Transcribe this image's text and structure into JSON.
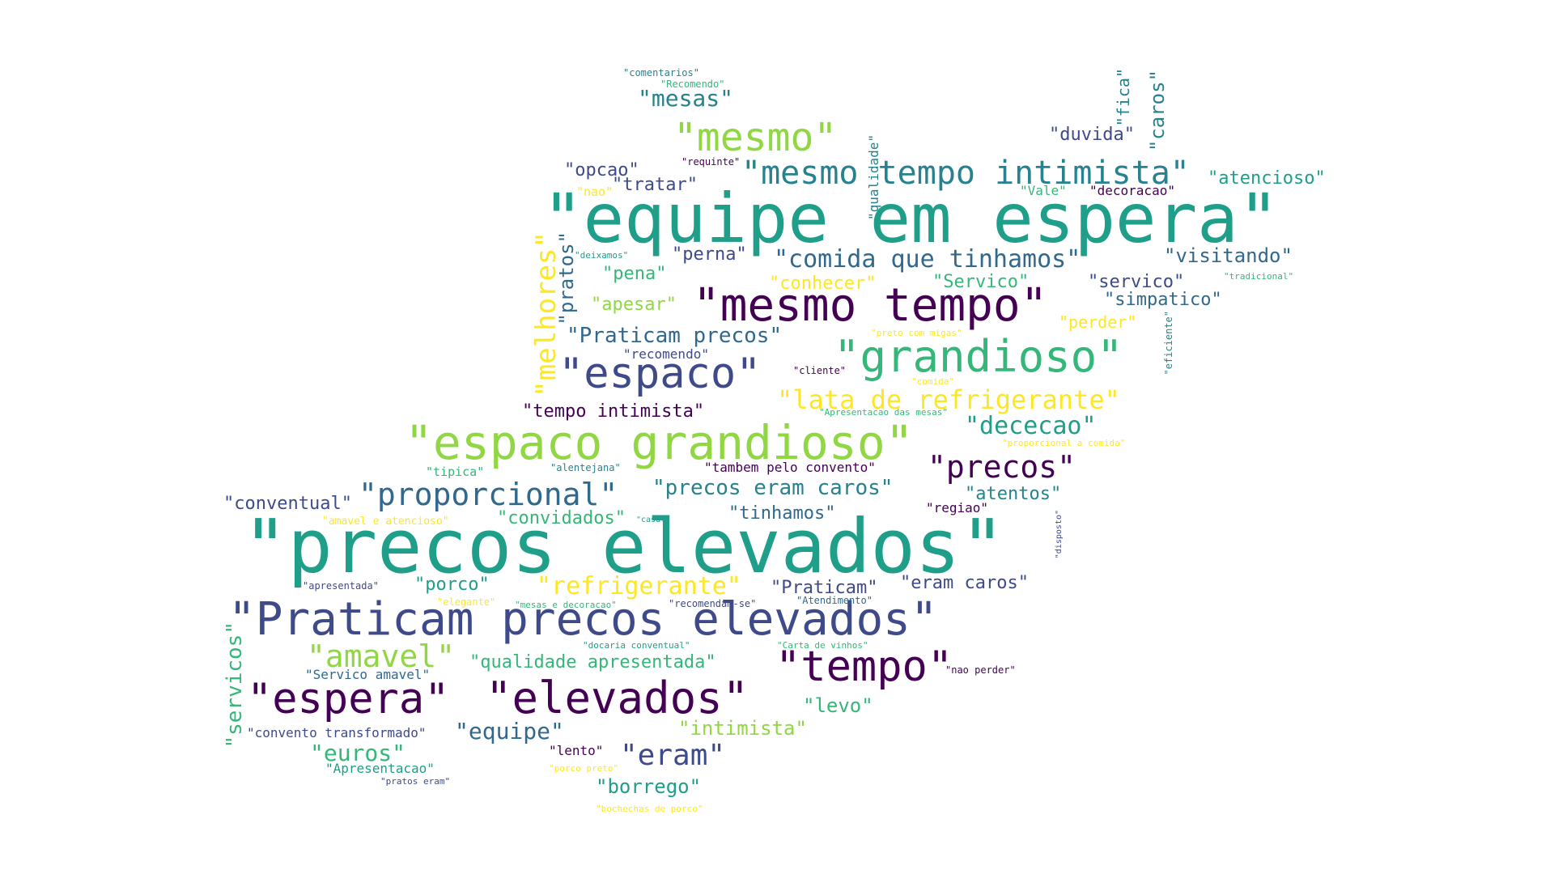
{
  "palette": {
    "dark_purple": "#440154",
    "indigo": "#3e4a89",
    "blue": "#31688e",
    "teal": "#26828e",
    "green_teal": "#1f9e89",
    "green": "#35b779",
    "lime": "#90d743",
    "yellow": "#fde725"
  },
  "words": [
    {
      "text": "\"precos elevados\"",
      "weight": 100,
      "color": "#1f9e89"
    },
    {
      "text": "\"equipe em espera\"",
      "weight": 90,
      "color": "#1f9e89"
    },
    {
      "text": "\"Praticam precos elevados\"",
      "weight": 70,
      "color": "#3e4a89"
    },
    {
      "text": "\"espaco grandioso\"",
      "weight": 68,
      "color": "#90d743"
    },
    {
      "text": "\"mesmo tempo\"",
      "weight": 66,
      "color": "#440154"
    },
    {
      "text": "\"grandioso\"",
      "weight": 62,
      "color": "#35b779"
    },
    {
      "text": "\"elevados\"",
      "weight": 62,
      "color": "#440154"
    },
    {
      "text": "\"tempo\"",
      "weight": 60,
      "color": "#440154"
    },
    {
      "text": "\"espaco\"",
      "weight": 58,
      "color": "#3e4a89"
    },
    {
      "text": "\"espera\"",
      "weight": 58,
      "color": "#440154"
    },
    {
      "text": "\"mesmo\"",
      "weight": 56,
      "color": "#90d743"
    },
    {
      "text": "\"mesmo tempo intimista\"",
      "weight": 50,
      "color": "#26828e"
    },
    {
      "text": "\"proporcional\"",
      "weight": 46,
      "color": "#31688e"
    },
    {
      "text": "\"amavel\"",
      "weight": 44,
      "color": "#90d743"
    },
    {
      "text": "\"melhores\"",
      "weight": 42,
      "color": "#fde725"
    },
    {
      "text": "\"eram\"",
      "weight": 40,
      "color": "#3e4a89"
    },
    {
      "text": "\"precos\"",
      "weight": 40,
      "color": "#440154"
    },
    {
      "text": "\"refrigerante\"",
      "weight": 36,
      "color": "#fde725"
    },
    {
      "text": "\"comida que tinhamos\"",
      "weight": 34,
      "color": "#31688e"
    },
    {
      "text": "\"lata de refrigerante\"",
      "weight": 34,
      "color": "#fde725"
    },
    {
      "text": "\"dececao\"",
      "weight": 34,
      "color": "#1f9e89"
    },
    {
      "text": "\"servicos\"",
      "weight": 32,
      "color": "#35b779"
    },
    {
      "text": "\"equipe\"",
      "weight": 32,
      "color": "#31688e"
    },
    {
      "text": "\"euros\"",
      "weight": 32,
      "color": "#35b779"
    },
    {
      "text": "\"mesas\"",
      "weight": 30,
      "color": "#26828e"
    },
    {
      "text": "\"precos eram caros\"",
      "weight": 30,
      "color": "#26828e"
    },
    {
      "text": "\"Praticam precos\"",
      "weight": 30,
      "color": "#31688e"
    },
    {
      "text": "\"caros\"",
      "weight": 28,
      "color": "#26828e"
    },
    {
      "text": "\"visitando\"",
      "weight": 28,
      "color": "#31688e"
    },
    {
      "text": "\"pratos\"",
      "weight": 28,
      "color": "#31688e"
    },
    {
      "text": "\"intimista\"",
      "weight": 28,
      "color": "#90d743"
    },
    {
      "text": "\"borrego\"",
      "weight": 28,
      "color": "#1f9e89"
    },
    {
      "text": "\"levo\"",
      "weight": 28,
      "color": "#35b779"
    },
    {
      "text": "\"tempo intimista\"",
      "weight": 26,
      "color": "#440154"
    },
    {
      "text": "\"atencioso\"",
      "weight": 26,
      "color": "#1f9e89"
    },
    {
      "text": "\"tratar\"",
      "weight": 26,
      "color": "#3e4a89"
    },
    {
      "text": "\"opcao\"",
      "weight": 26,
      "color": "#3e4a89"
    },
    {
      "text": "\"conventual\"",
      "weight": 26,
      "color": "#3e4a89"
    },
    {
      "text": "\"convidados\"",
      "weight": 26,
      "color": "#35b779"
    },
    {
      "text": "\"tinhamos\"",
      "weight": 26,
      "color": "#31688e"
    },
    {
      "text": "\"atentos\"",
      "weight": 26,
      "color": "#26828e"
    },
    {
      "text": "\"eram caros\"",
      "weight": 26,
      "color": "#3e4a89"
    },
    {
      "text": "\"Praticam\"",
      "weight": 26,
      "color": "#3e4a89"
    },
    {
      "text": "\"qualidade apresentada\"",
      "weight": 26,
      "color": "#35b779"
    },
    {
      "text": "\"conhecer\"",
      "weight": 24,
      "color": "#fde725"
    },
    {
      "text": "\"Servico\"",
      "weight": 24,
      "color": "#35b779"
    },
    {
      "text": "\"servico\"",
      "weight": 24,
      "color": "#3e4a89"
    },
    {
      "text": "\"simpatico\"",
      "weight": 24,
      "color": "#31688e"
    },
    {
      "text": "\"perna\"",
      "weight": 24,
      "color": "#3e4a89"
    },
    {
      "text": "\"pena\"",
      "weight": 24,
      "color": "#35b779"
    },
    {
      "text": "\"apesar\"",
      "weight": 24,
      "color": "#90d743"
    },
    {
      "text": "\"porco\"",
      "weight": 24,
      "color": "#1f9e89"
    },
    {
      "text": "\"duvida\"",
      "weight": 24,
      "color": "#3e4a89"
    },
    {
      "text": "\"fica\"",
      "weight": 24,
      "color": "#26828e"
    },
    {
      "text": "\"perder\"",
      "weight": 22,
      "color": "#fde725"
    },
    {
      "text": "\"Apresentacao\"",
      "weight": 20,
      "color": "#1f9e89"
    },
    {
      "text": "\"convento transformado\"",
      "weight": 20,
      "color": "#3e4a89"
    },
    {
      "text": "\"Servico amavel\"",
      "weight": 20,
      "color": "#31688e"
    },
    {
      "text": "\"tambem pelo convento\"",
      "weight": 20,
      "color": "#440154"
    },
    {
      "text": "\"lento\"",
      "weight": 20,
      "color": "#440154"
    },
    {
      "text": "\"recomendo\"",
      "weight": 20,
      "color": "#3e4a89"
    },
    {
      "text": "\"decoracao\"",
      "weight": 20,
      "color": "#440154"
    },
    {
      "text": "\"Vale\"",
      "weight": 20,
      "color": "#35b779"
    },
    {
      "text": "\"qualidade\"",
      "weight": 20,
      "color": "#26828e"
    },
    {
      "text": "\"regiao\"",
      "weight": 20,
      "color": "#440154"
    },
    {
      "text": "\"tipica\"",
      "weight": 18,
      "color": "#35b779"
    },
    {
      "text": "\"nao\"",
      "weight": 18,
      "color": "#fde725"
    },
    {
      "text": "\"amavel e atencioso\"",
      "weight": 16,
      "color": "#fde725"
    },
    {
      "text": "\"eficiente\"",
      "weight": 16,
      "color": "#26828e"
    },
    {
      "text": "\"cliente\"",
      "weight": 14,
      "color": "#440154"
    },
    {
      "text": "\"apresentada\"",
      "weight": 14,
      "color": "#3e4a89"
    },
    {
      "text": "\"nao perder\"",
      "weight": 14,
      "color": "#440154"
    },
    {
      "text": "\"requinte\"",
      "weight": 14,
      "color": "#440154"
    },
    {
      "text": "\"comentarios\"",
      "weight": 14,
      "color": "#26828e"
    },
    {
      "text": "\"Recomendo\"",
      "weight": 14,
      "color": "#35b779"
    },
    {
      "text": "\"alentejana\"",
      "weight": 14,
      "color": "#26828e"
    },
    {
      "text": "\"elegante\"",
      "weight": 14,
      "color": "#fde725"
    },
    {
      "text": "\"Atendimento\"",
      "weight": 14,
      "color": "#31688e"
    },
    {
      "text": "\"recomendam-se\"",
      "weight": 14,
      "color": "#3e4a89"
    },
    {
      "text": "\"mesas e decoracao\"",
      "weight": 12,
      "color": "#35b779"
    },
    {
      "text": "\"porco preto\"",
      "weight": 12,
      "color": "#fde725"
    },
    {
      "text": "\"pratos eram\"",
      "weight": 12,
      "color": "#3e4a89"
    },
    {
      "text": "\"bochechas de porco\"",
      "weight": 12,
      "color": "#fde725"
    },
    {
      "text": "\"docaria conventual\"",
      "weight": 12,
      "color": "#1f9e89"
    },
    {
      "text": "\"Carta de vinhos\"",
      "weight": 12,
      "color": "#35b779"
    },
    {
      "text": "\"tradicional\"",
      "weight": 12,
      "color": "#35b779"
    },
    {
      "text": "\"preto com migas\"",
      "weight": 12,
      "color": "#fde725"
    },
    {
      "text": "\"comida\"",
      "weight": 12,
      "color": "#fde725"
    },
    {
      "text": "\"Apresentacao das mesas\"",
      "weight": 12,
      "color": "#35b779"
    },
    {
      "text": "\"proporcional a comida\"",
      "weight": 12,
      "color": "#fde725"
    },
    {
      "text": "\"deixamos\"",
      "weight": 12,
      "color": "#1f9e89"
    },
    {
      "text": "\"casal\"",
      "weight": 12,
      "color": "#1f9e89"
    },
    {
      "text": "\"disposto\"",
      "weight": 12,
      "color": "#3e4a89"
    }
  ]
}
